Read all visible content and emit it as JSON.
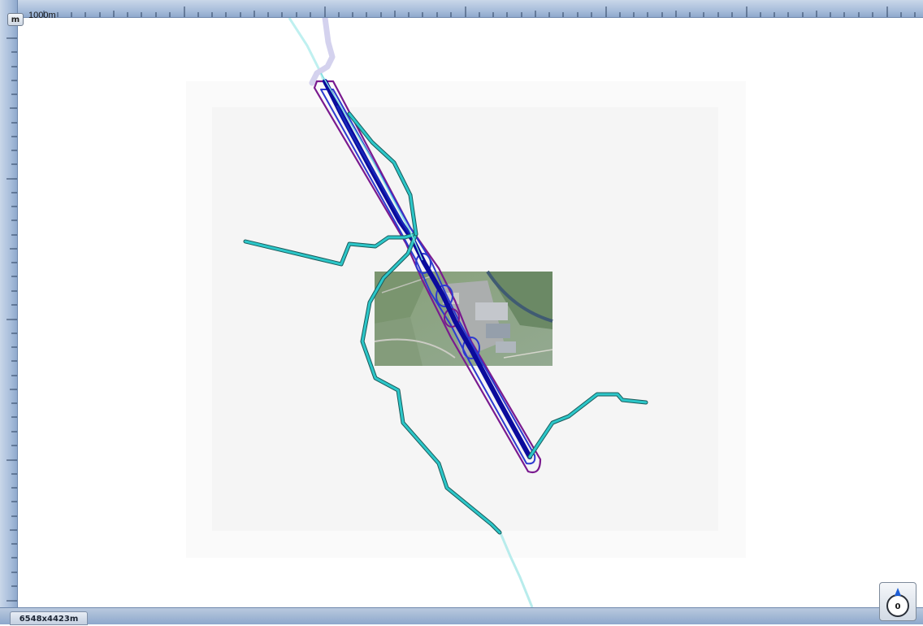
{
  "ruler": {
    "unit_button_label": "m",
    "scale_label": "1000m"
  },
  "status": {
    "map_size": "6548x4423m"
  },
  "compass": {
    "value": "0"
  },
  "map": {
    "colors": {
      "background": "#ffffff",
      "extent_outer": "#fafafa",
      "extent_inner": "#f5f5f5",
      "track_cyan": "#2cc7c9",
      "track_dark_blue": "#0b0b9c",
      "buffer_blue": "#2d3ad0",
      "buffer_purple": "#7a1a8f"
    },
    "layers": [
      "aerial-photo-tile",
      "cyan-track",
      "dark-blue-route",
      "blue-buffer",
      "purple-buffer"
    ]
  }
}
